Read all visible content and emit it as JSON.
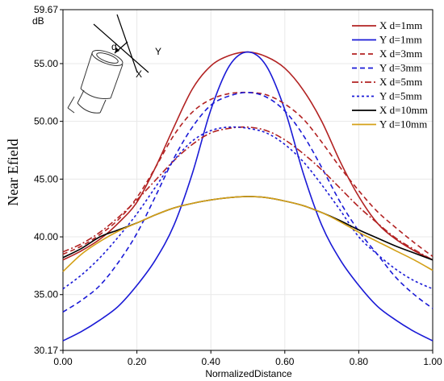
{
  "chart_data": {
    "type": "line",
    "xlabel": "NormalizedDistance",
    "ylabel": "Near Efield",
    "yunit": "dB",
    "xlim": [
      0,
      1
    ],
    "ylim": [
      30.17,
      59.67
    ],
    "xticks": [
      "0.00",
      "0.20",
      "0.40",
      "0.60",
      "0.80",
      "1.00"
    ],
    "yticks": [
      "30.17",
      "35.00",
      "40.00",
      "45.00",
      "50.00",
      "55.00",
      "59.67"
    ],
    "legend_position": "top-right",
    "inset_labels": {
      "d": "d",
      "x": "X",
      "y": "Y"
    },
    "x": [
      0.0,
      0.05,
      0.1,
      0.15,
      0.2,
      0.25,
      0.3,
      0.35,
      0.4,
      0.45,
      0.5,
      0.55,
      0.6,
      0.65,
      0.7,
      0.75,
      0.8,
      0.85,
      0.9,
      0.95,
      1.0
    ],
    "series": [
      {
        "name": "X  d=1mm",
        "color": "#b22222",
        "dash": "",
        "values": [
          38.0,
          38.8,
          39.8,
          41.2,
          43.0,
          46.0,
          49.5,
          52.8,
          54.8,
          55.7,
          56.0,
          55.6,
          54.6,
          52.7,
          50.0,
          46.5,
          43.5,
          41.2,
          39.8,
          38.8,
          38.0
        ]
      },
      {
        "name": "Y  d=1mm",
        "color": "#1a1ad6",
        "dash": "",
        "values": [
          31.0,
          31.8,
          32.8,
          34.0,
          35.8,
          38.0,
          41.0,
          45.5,
          51.0,
          54.8,
          56.0,
          54.8,
          51.0,
          45.5,
          41.0,
          38.0,
          35.8,
          34.0,
          32.8,
          31.8,
          31.0
        ]
      },
      {
        "name": "X  d=3mm",
        "color": "#b22222",
        "dash": "6,4",
        "values": [
          38.5,
          39.2,
          40.2,
          41.5,
          43.4,
          46.0,
          48.8,
          50.8,
          51.9,
          52.4,
          52.5,
          52.3,
          51.5,
          50.2,
          48.2,
          46.0,
          44.0,
          42.2,
          40.8,
          39.5,
          38.3
        ]
      },
      {
        "name": "Y  d=3mm",
        "color": "#1a1ad6",
        "dash": "6,4",
        "values": [
          33.5,
          34.5,
          35.8,
          37.8,
          40.3,
          43.5,
          46.8,
          49.5,
          51.4,
          52.2,
          52.5,
          52.1,
          50.9,
          48.8,
          46.0,
          43.0,
          40.5,
          38.5,
          36.5,
          35.0,
          33.8
        ]
      },
      {
        "name": "X  d=5mm",
        "color": "#b22222",
        "dash": "8,3,2,3",
        "values": [
          38.7,
          39.4,
          40.4,
          41.7,
          43.2,
          44.9,
          46.6,
          48.0,
          49.0,
          49.4,
          49.5,
          49.2,
          48.4,
          47.2,
          45.8,
          44.2,
          42.6,
          41.2,
          39.9,
          38.9,
          38.0
        ]
      },
      {
        "name": "Y  d=5mm",
        "color": "#1a1ad6",
        "dash": "3,3",
        "values": [
          35.5,
          36.7,
          38.2,
          40.0,
          42.0,
          44.3,
          46.6,
          48.3,
          49.2,
          49.5,
          49.4,
          49.0,
          48.0,
          46.5,
          44.5,
          42.3,
          40.0,
          38.5,
          37.2,
          36.2,
          35.5
        ]
      },
      {
        "name": "X  d=10mm",
        "color": "#000000",
        "dash": "",
        "values": [
          38.2,
          39.0,
          40.0,
          40.6,
          41.2,
          41.9,
          42.5,
          42.9,
          43.2,
          43.4,
          43.5,
          43.4,
          43.1,
          42.7,
          42.1,
          41.4,
          40.6,
          39.9,
          39.2,
          38.6,
          38.0
        ]
      },
      {
        "name": "Y  d=10mm",
        "color": "#d4a017",
        "dash": "",
        "values": [
          37.0,
          38.5,
          39.6,
          40.5,
          41.2,
          41.9,
          42.5,
          42.9,
          43.2,
          43.4,
          43.5,
          43.4,
          43.1,
          42.7,
          42.1,
          41.3,
          40.4,
          39.6,
          38.8,
          38.0,
          37.1
        ]
      }
    ]
  }
}
